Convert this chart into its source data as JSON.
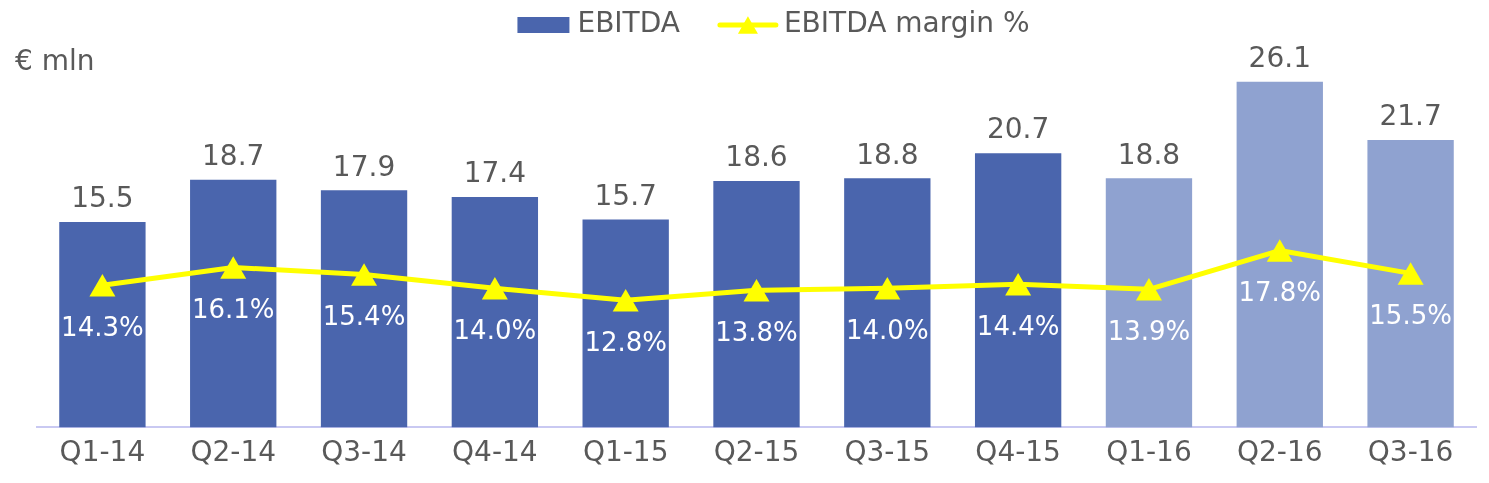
{
  "chart_data": {
    "type": "bar",
    "ylabel": "€ mln",
    "categories": [
      "Q1-14",
      "Q2-14",
      "Q3-14",
      "Q4-14",
      "Q1-15",
      "Q2-15",
      "Q3-15",
      "Q4-15",
      "Q1-16",
      "Q2-16",
      "Q3-16"
    ],
    "series": [
      {
        "name": "EBITDA",
        "colors": [
          "#4a65ad",
          "#4a65ad",
          "#4a65ad",
          "#4a65ad",
          "#4a65ad",
          "#4a65ad",
          "#4a65ad",
          "#4a65ad",
          "#8fa2d0",
          "#8fa2d0",
          "#8fa2d0"
        ],
        "values": [
          15.5,
          18.7,
          17.9,
          17.4,
          15.7,
          18.6,
          18.8,
          20.7,
          18.8,
          26.1,
          21.7
        ]
      },
      {
        "name": "EBITDA margin %",
        "type": "line",
        "axis": "y2",
        "color": "#ffff00",
        "marker": "triangle",
        "values": [
          14.3,
          16.1,
          15.4,
          14.0,
          12.8,
          13.8,
          14.0,
          14.4,
          13.9,
          17.8,
          15.5
        ],
        "value_labels": [
          "14.3%",
          "16.1%",
          "15.4%",
          "14.0%",
          "12.8%",
          "13.8%",
          "14.0%",
          "14.4%",
          "13.9%",
          "17.8%",
          "15.5%"
        ]
      }
    ],
    "data_labels": true,
    "legend": "top",
    "tick_labels": "x"
  }
}
